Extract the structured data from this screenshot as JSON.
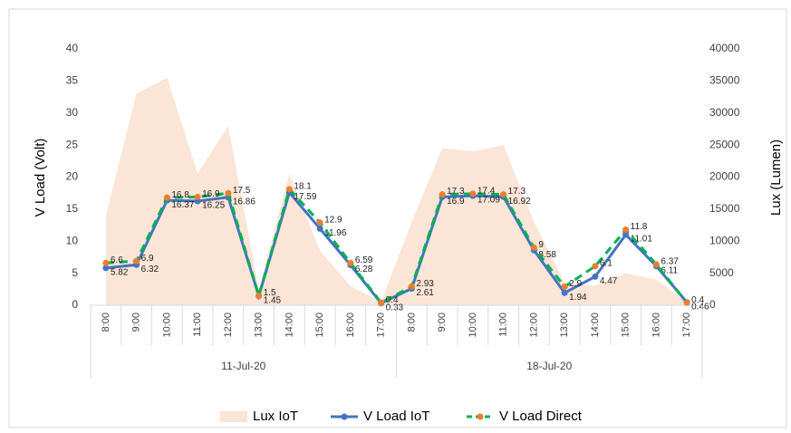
{
  "chart_data": {
    "type": "combo",
    "categories": [
      "8:00",
      "9:00",
      "10:00",
      "11:00",
      "12:00",
      "13:00",
      "14:00",
      "15:00",
      "16:00",
      "17:00",
      "8:00",
      "9:00",
      "10:00",
      "11:00",
      "12:00",
      "13:00",
      "14:00",
      "15:00",
      "16:00",
      "17:00"
    ],
    "category_groups": [
      "11-Jul-20",
      "18-Jul-20"
    ],
    "ylabel": "V Load (Volt)",
    "y2label": "Lux (Lumen)",
    "ylim": [
      0,
      40
    ],
    "yticks": [
      0,
      5,
      10,
      15,
      20,
      25,
      30,
      35,
      40
    ],
    "y2lim": [
      0,
      40000
    ],
    "y2ticks": [
      0,
      5000,
      10000,
      15000,
      20000,
      25000,
      30000,
      35000,
      40000
    ],
    "legend": "bottom",
    "series": [
      {
        "name": "Lux IoT",
        "kind": "area",
        "axis": "y2",
        "color": "#fbe5d6",
        "values": [
          14000,
          33000,
          35500,
          20500,
          28000,
          2500,
          20500,
          8500,
          3000,
          500,
          13000,
          24500,
          24000,
          25000,
          13000,
          3500,
          3000,
          5000,
          4000,
          500
        ]
      },
      {
        "name": "V Load IoT",
        "kind": "line",
        "color": "#4472c4",
        "marker": "#4472c4",
        "values": [
          5.82,
          6.32,
          16.37,
          16.25,
          16.86,
          1.45,
          17.59,
          11.96,
          6.28,
          0.33,
          2.61,
          16.9,
          17.09,
          16.92,
          8.58,
          1.94,
          4.47,
          11.01,
          6.11,
          0.46
        ]
      },
      {
        "name": "V Load Direct",
        "kind": "dashed",
        "color": "#00b050",
        "marker": "#ed7d31",
        "values": [
          6.6,
          6.9,
          16.8,
          16.9,
          17.5,
          1.5,
          18.1,
          12.9,
          6.59,
          0.4,
          2.93,
          17.3,
          17.4,
          17.3,
          9,
          2.9,
          6.1,
          11.8,
          6.37,
          0.4
        ]
      }
    ]
  }
}
